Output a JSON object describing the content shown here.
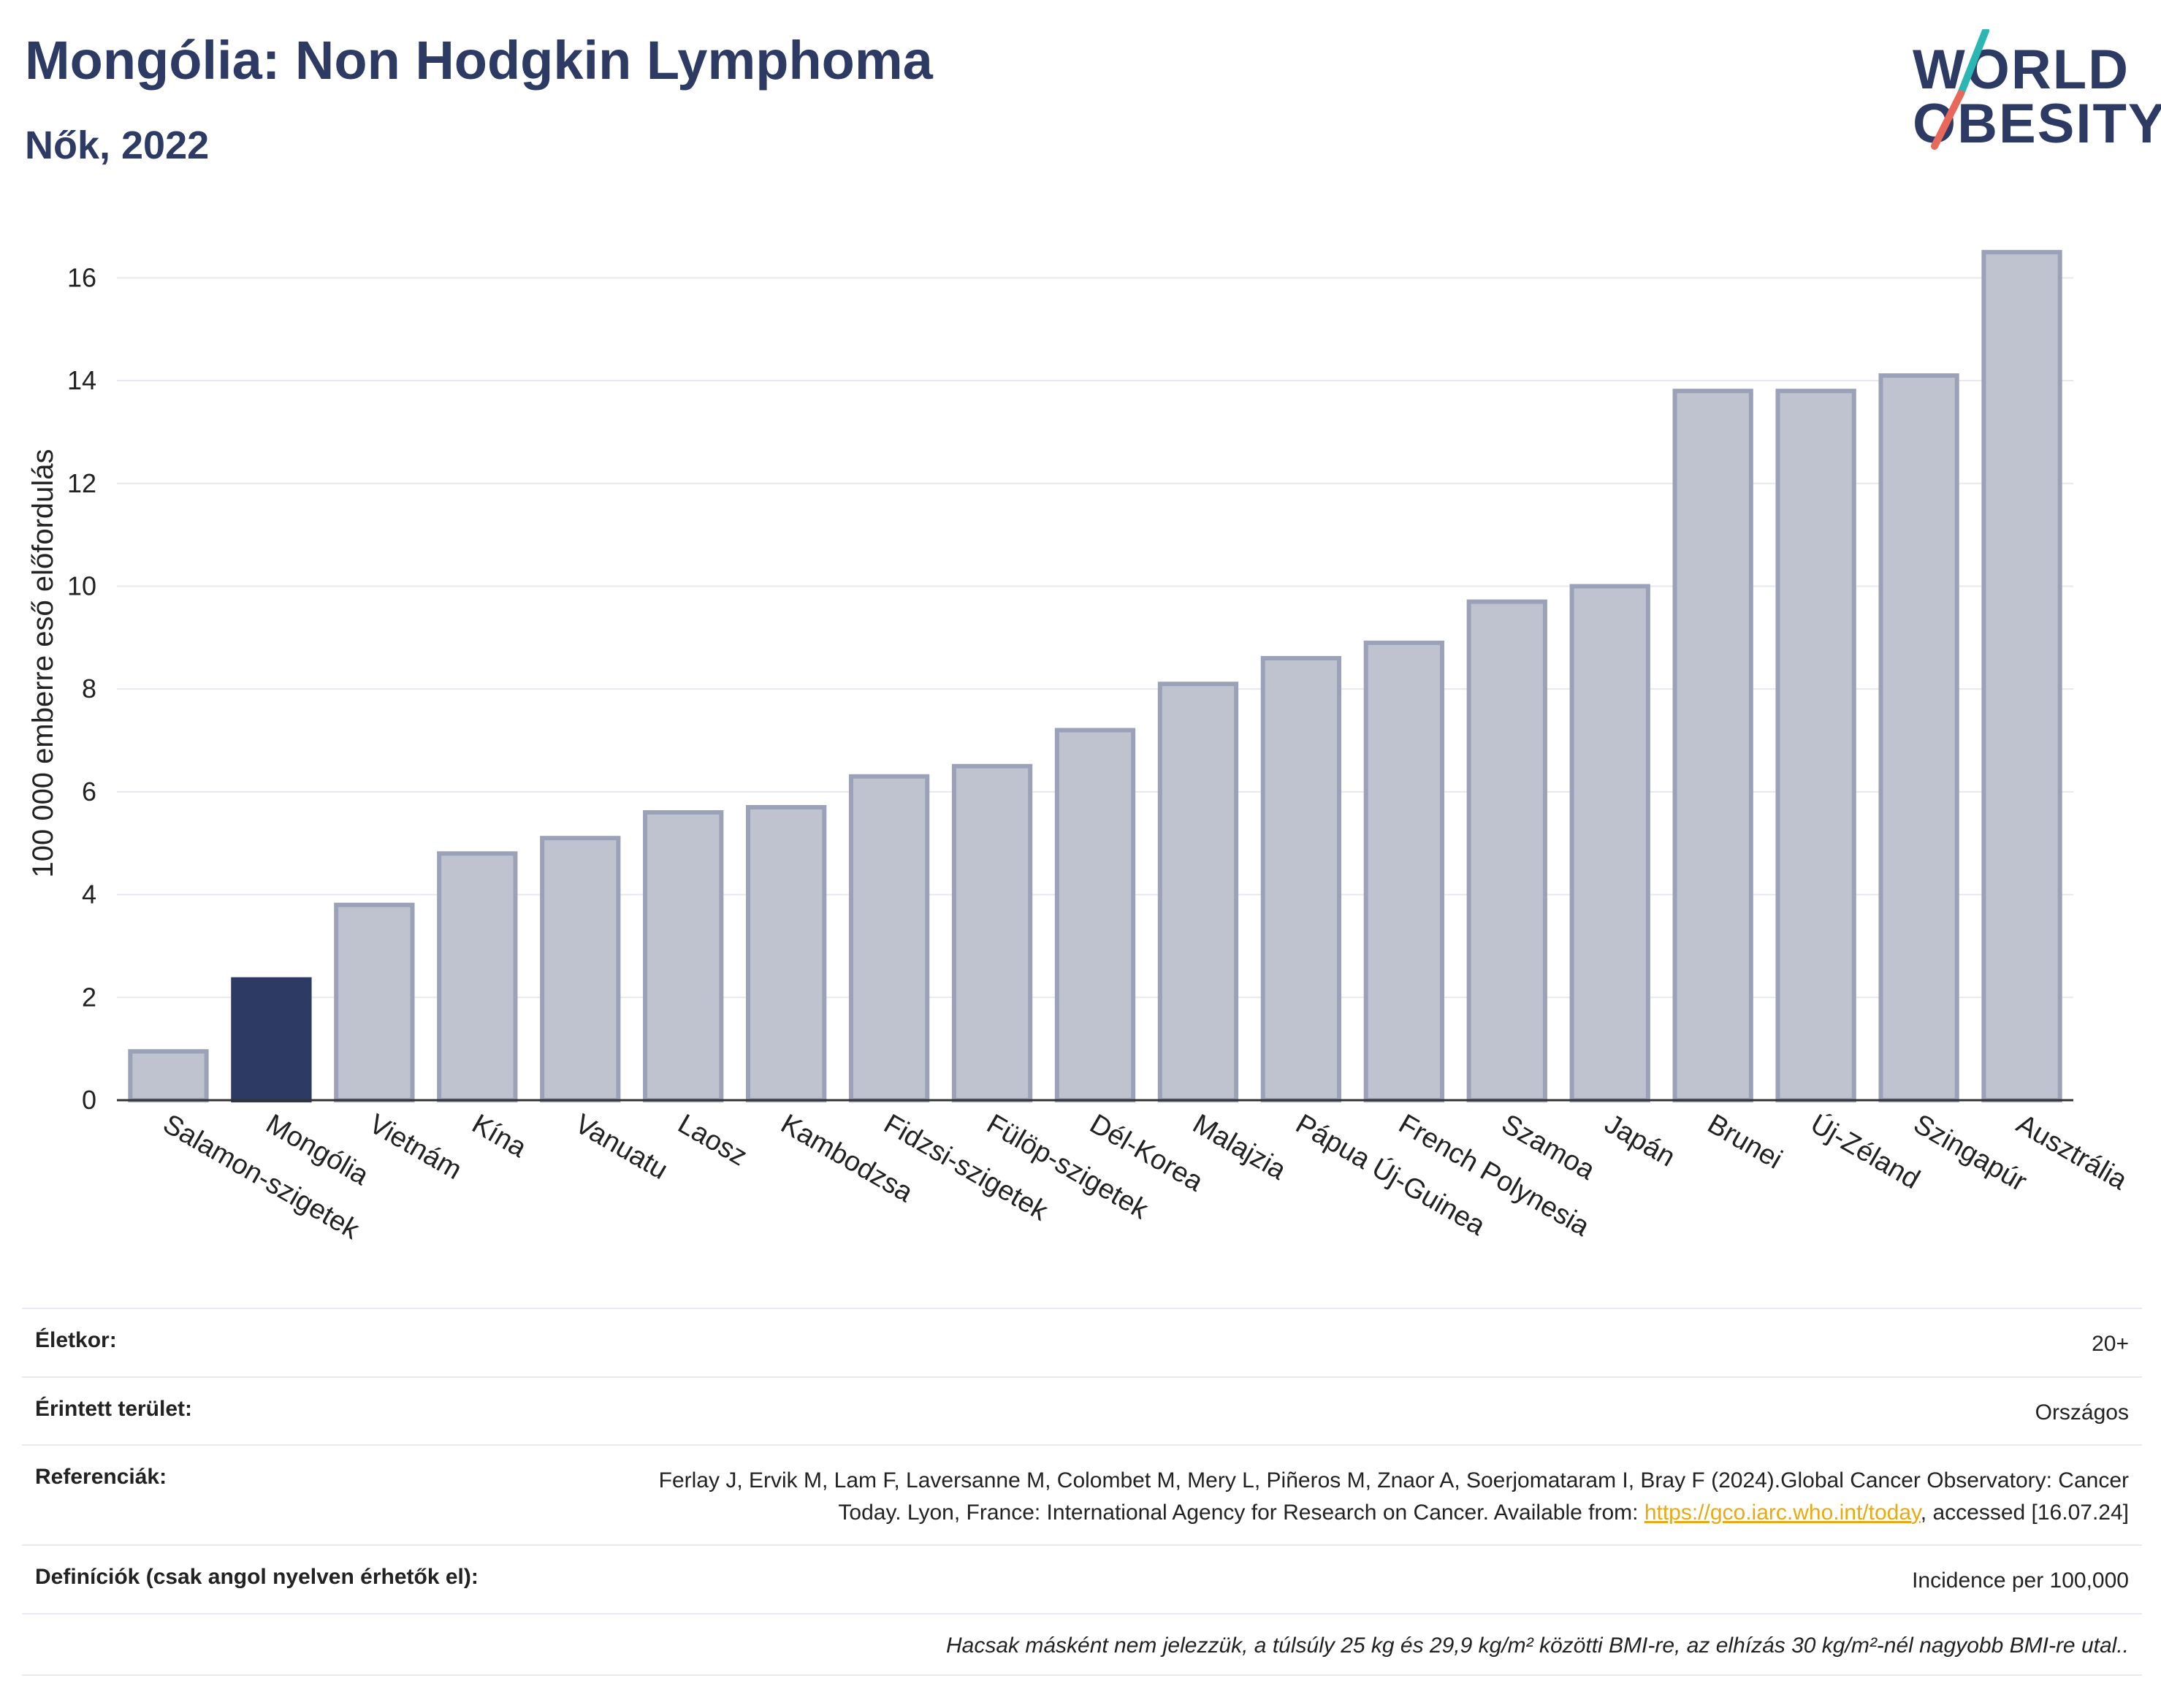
{
  "header": {
    "title": "Mongólia: Non Hodgkin Lymphoma",
    "subtitle": "Nők, 2022"
  },
  "logo": {
    "line1": "WORLD",
    "line2": "OBESITY",
    "accent_colors": [
      "#2ab7b3",
      "#e8695a"
    ]
  },
  "colors": {
    "highlight": "#2d3a63",
    "bar_fill": "#bfc3d0",
    "bar_stroke": "#9ba2b8",
    "grid": "#e6e8ef"
  },
  "chart_data": {
    "type": "bar",
    "ylabel": "100 000 emberre eső előfordulás",
    "xlabel": "",
    "ylim": [
      0,
      17
    ],
    "yticks": [
      0,
      2,
      4,
      6,
      8,
      10,
      12,
      14,
      16
    ],
    "grid": true,
    "highlight_category": "Mongólia",
    "categories": [
      "Salamon-szigetek",
      "Mongólia",
      "Vietnám",
      "Kína",
      "Vanuatu",
      "Laosz",
      "Kambodzsa",
      "Fidzsi-szigetek",
      "Fülöp-szigetek",
      "Dél-Korea",
      "Malajzia",
      "Pápua Új-Guinea",
      "French Polynesia",
      "Szamoa",
      "Japán",
      "Brunei",
      "Új-Zéland",
      "Szingapúr",
      "Ausztrália"
    ],
    "values": [
      0.95,
      2.35,
      3.8,
      4.8,
      5.1,
      5.6,
      5.7,
      6.3,
      6.5,
      7.2,
      8.1,
      8.6,
      8.9,
      9.7,
      10.0,
      13.8,
      13.8,
      14.1,
      16.5
    ]
  },
  "info": {
    "age_label": "Életkor:",
    "age_value": "20+",
    "area_label": "Érintett terület:",
    "area_value": "Országos",
    "ref_label": "Referenciák:",
    "ref_text_1": "Ferlay J, Ervik M, Lam F, Laversanne M, Colombet M, Mery L, Piñeros M, Znaor A, Soerjomataram I, Bray F (2024).Global Cancer Observatory: Cancer Today. Lyon, France: International Agency for Research on Cancer. Available from: ",
    "ref_link": "https://gco.iarc.who.int/today",
    "ref_text_2": ", accessed [16.07.24]",
    "def_label": "Definíciók (csak angol nyelven érhetők el):",
    "def_value": "Incidence per 100,000",
    "note": "Hacsak másként nem jelezzük, a túlsúly 25 kg és 29,9 kg/m² közötti BMI-re, az elhízás 30 kg/m²-nél nagyobb BMI-re utal.."
  }
}
